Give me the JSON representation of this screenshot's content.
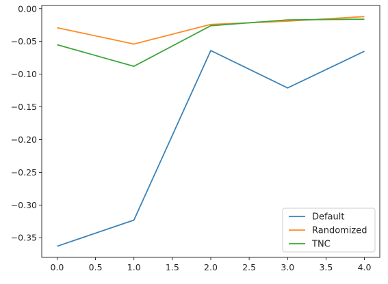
{
  "chart_data": {
    "type": "line",
    "title": "",
    "xlabel": "",
    "ylabel": "",
    "x": [
      0,
      1,
      2,
      3,
      4
    ],
    "xlim": [
      -0.2,
      4.2
    ],
    "ylim": [
      -0.38,
      0.005
    ],
    "x_ticks": [
      0.0,
      0.5,
      1.0,
      1.5,
      2.0,
      2.5,
      3.0,
      3.5,
      4.0
    ],
    "x_tick_labels": [
      "0.0",
      "0.5",
      "1.0",
      "1.5",
      "2.0",
      "2.5",
      "3.0",
      "3.5",
      "4.0"
    ],
    "y_ticks": [
      0.0,
      -0.05,
      -0.1,
      -0.15,
      -0.2,
      -0.25,
      -0.3,
      -0.35
    ],
    "y_tick_labels": [
      "0.00",
      "−0.05",
      "−0.10",
      "−0.15",
      "−0.20",
      "−0.25",
      "−0.30",
      "−0.35"
    ],
    "grid": false,
    "legend_position": "lower-right",
    "series": [
      {
        "name": "Default",
        "color": "#3b82b8",
        "values": [
          -0.363,
          -0.323,
          -0.064,
          -0.121,
          -0.065
        ]
      },
      {
        "name": "Randomized",
        "color": "#ff8a24",
        "values": [
          -0.029,
          -0.054,
          -0.024,
          -0.019,
          -0.012
        ]
      },
      {
        "name": "TNC",
        "color": "#3aa63a",
        "values": [
          -0.055,
          -0.088,
          -0.026,
          -0.017,
          -0.016
        ]
      }
    ]
  }
}
